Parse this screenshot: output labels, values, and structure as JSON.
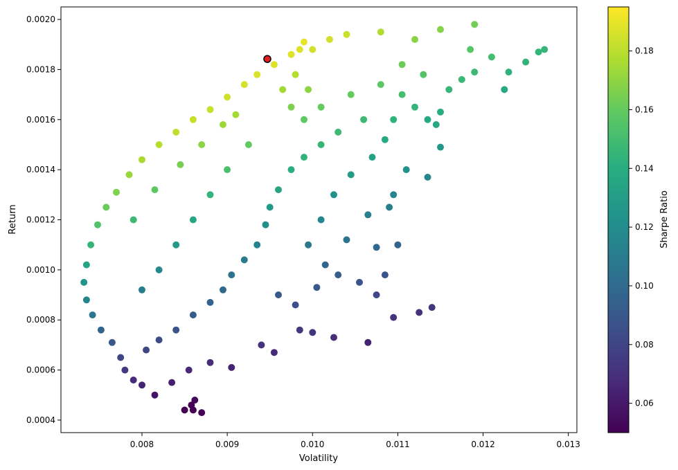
{
  "chart_data": {
    "type": "scatter",
    "title": "",
    "xlabel": "Volatility",
    "ylabel": "Return",
    "xlim": [
      0.00705,
      0.0131
    ],
    "ylim": [
      0.00035,
      0.00205
    ],
    "x_ticks": [
      0.008,
      0.009,
      0.01,
      0.011,
      0.012,
      0.013
    ],
    "x_tick_labels": [
      "0.008",
      "0.009",
      "0.010",
      "0.011",
      "0.012",
      "0.013"
    ],
    "y_ticks": [
      0.0004,
      0.0006,
      0.0008,
      0.001,
      0.0012,
      0.0014,
      0.0016,
      0.0018,
      0.002
    ],
    "y_tick_labels": [
      "0.0004",
      "0.0006",
      "0.0008",
      "0.0010",
      "0.0012",
      "0.0014",
      "0.0016",
      "0.0018",
      "0.0020"
    ],
    "grid": false,
    "colormap": "viridis",
    "color_by": "Sharpe Ratio",
    "colorbar": {
      "label": "Sharpe Ratio",
      "range": [
        0.05,
        0.195
      ],
      "ticks": [
        0.06,
        0.08,
        0.1,
        0.12,
        0.14,
        0.16,
        0.18
      ],
      "tick_labels": [
        "0.06",
        "0.08",
        "0.10",
        "0.12",
        "0.14",
        "0.16",
        "0.18"
      ]
    },
    "highlight": {
      "x": 0.00947,
      "y": 0.001842,
      "color": "#e02020",
      "edgecolor": "#000000"
    },
    "series": [
      {
        "points": [
          [
            0.00732,
            0.00095
          ],
          [
            0.00735,
            0.00102
          ],
          [
            0.0074,
            0.0011
          ],
          [
            0.00748,
            0.00118
          ],
          [
            0.00758,
            0.00125
          ],
          [
            0.0077,
            0.00131
          ],
          [
            0.00785,
            0.00138
          ],
          [
            0.008,
            0.00144
          ],
          [
            0.0082,
            0.0015
          ],
          [
            0.0084,
            0.00155
          ],
          [
            0.0086,
            0.0016
          ],
          [
            0.0088,
            0.00164
          ],
          [
            0.009,
            0.00169
          ],
          [
            0.0092,
            0.00174
          ],
          [
            0.00935,
            0.00178
          ],
          [
            0.00955,
            0.00182
          ],
          [
            0.00975,
            0.00186
          ],
          [
            0.00985,
            0.00188
          ],
          [
            0.0099,
            0.00191
          ],
          [
            0.00735,
            0.00088
          ],
          [
            0.00742,
            0.00082
          ],
          [
            0.00752,
            0.00076
          ],
          [
            0.00765,
            0.00071
          ],
          [
            0.00775,
            0.00065
          ],
          [
            0.0078,
            0.0006
          ],
          [
            0.0079,
            0.00056
          ],
          [
            0.008,
            0.00054
          ],
          [
            0.00815,
            0.0005
          ],
          [
            0.00835,
            0.00055
          ],
          [
            0.00855,
            0.0006
          ],
          [
            0.0088,
            0.00063
          ],
          [
            0.00905,
            0.00061
          ],
          [
            0.0085,
            0.00044
          ],
          [
            0.00858,
            0.00046
          ],
          [
            0.00862,
            0.00048
          ],
          [
            0.0087,
            0.00043
          ],
          [
            0.0086,
            0.00044
          ],
          [
            0.0094,
            0.0007
          ],
          [
            0.00955,
            0.00067
          ],
          [
            0.00985,
            0.00076
          ],
          [
            0.01,
            0.00075
          ],
          [
            0.01065,
            0.00071
          ],
          [
            0.01025,
            0.00073
          ],
          [
            0.01095,
            0.00081
          ],
          [
            0.01125,
            0.00083
          ],
          [
            0.0114,
            0.00085
          ],
          [
            0.01075,
            0.0009
          ],
          [
            0.01085,
            0.00098
          ],
          [
            0.0103,
            0.00098
          ],
          [
            0.01055,
            0.00095
          ],
          [
            0.011,
            0.0011
          ],
          [
            0.01075,
            0.00109
          ],
          [
            0.0104,
            0.00112
          ],
          [
            0.01065,
            0.00122
          ],
          [
            0.0109,
            0.00125
          ],
          [
            0.01095,
            0.0013
          ],
          [
            0.0111,
            0.0014
          ],
          [
            0.01135,
            0.00137
          ],
          [
            0.0115,
            0.00149
          ],
          [
            0.01145,
            0.00158
          ],
          [
            0.0115,
            0.00163
          ],
          [
            0.0116,
            0.00172
          ],
          [
            0.01175,
            0.00176
          ],
          [
            0.0119,
            0.00179
          ],
          [
            0.0121,
            0.00185
          ],
          [
            0.01225,
            0.00172
          ],
          [
            0.0123,
            0.00179
          ],
          [
            0.0125,
            0.00183
          ],
          [
            0.01265,
            0.00187
          ],
          [
            0.01272,
            0.00188
          ],
          [
            0.01185,
            0.00188
          ],
          [
            0.0119,
            0.00198
          ],
          [
            0.0115,
            0.00196
          ],
          [
            0.0112,
            0.00192
          ],
          [
            0.0108,
            0.00195
          ],
          [
            0.0104,
            0.00194
          ],
          [
            0.0102,
            0.00192
          ],
          [
            0.01,
            0.00188
          ],
          [
            0.01105,
            0.00182
          ],
          [
            0.0113,
            0.00178
          ],
          [
            0.0108,
            0.00174
          ],
          [
            0.01045,
            0.0017
          ],
          [
            0.0106,
            0.0016
          ],
          [
            0.0103,
            0.00155
          ],
          [
            0.0101,
            0.0015
          ],
          [
            0.0099,
            0.00145
          ],
          [
            0.00975,
            0.0014
          ],
          [
            0.0096,
            0.00132
          ],
          [
            0.0095,
            0.00125
          ],
          [
            0.00945,
            0.00118
          ],
          [
            0.00935,
            0.0011
          ],
          [
            0.0092,
            0.00104
          ],
          [
            0.00905,
            0.00098
          ],
          [
            0.00895,
            0.00092
          ],
          [
            0.0088,
            0.00087
          ],
          [
            0.0086,
            0.00082
          ],
          [
            0.0084,
            0.00076
          ],
          [
            0.0082,
            0.00072
          ],
          [
            0.00805,
            0.00068
          ],
          [
            0.0096,
            0.0009
          ],
          [
            0.0098,
            0.00086
          ],
          [
            0.01005,
            0.00093
          ],
          [
            0.01015,
            0.00102
          ],
          [
            0.00995,
            0.0011
          ],
          [
            0.0101,
            0.0012
          ],
          [
            0.01025,
            0.0013
          ],
          [
            0.01045,
            0.00138
          ],
          [
            0.0107,
            0.00145
          ],
          [
            0.01085,
            0.00152
          ],
          [
            0.01095,
            0.0016
          ],
          [
            0.0112,
            0.00165
          ],
          [
            0.01135,
            0.0016
          ],
          [
            0.01105,
            0.0017
          ],
          [
            0.00965,
            0.00172
          ],
          [
            0.00975,
            0.00165
          ],
          [
            0.0099,
            0.0016
          ],
          [
            0.0101,
            0.00165
          ],
          [
            0.00995,
            0.00172
          ],
          [
            0.0098,
            0.00178
          ],
          [
            0.00925,
            0.0015
          ],
          [
            0.009,
            0.0014
          ],
          [
            0.0088,
            0.0013
          ],
          [
            0.0086,
            0.0012
          ],
          [
            0.0084,
            0.0011
          ],
          [
            0.0082,
            0.001
          ],
          [
            0.008,
            0.00092
          ],
          [
            0.0079,
            0.0012
          ],
          [
            0.00815,
            0.00132
          ],
          [
            0.00845,
            0.00142
          ],
          [
            0.0087,
            0.0015
          ],
          [
            0.00895,
            0.00158
          ],
          [
            0.0091,
            0.00162
          ]
        ]
      }
    ]
  }
}
